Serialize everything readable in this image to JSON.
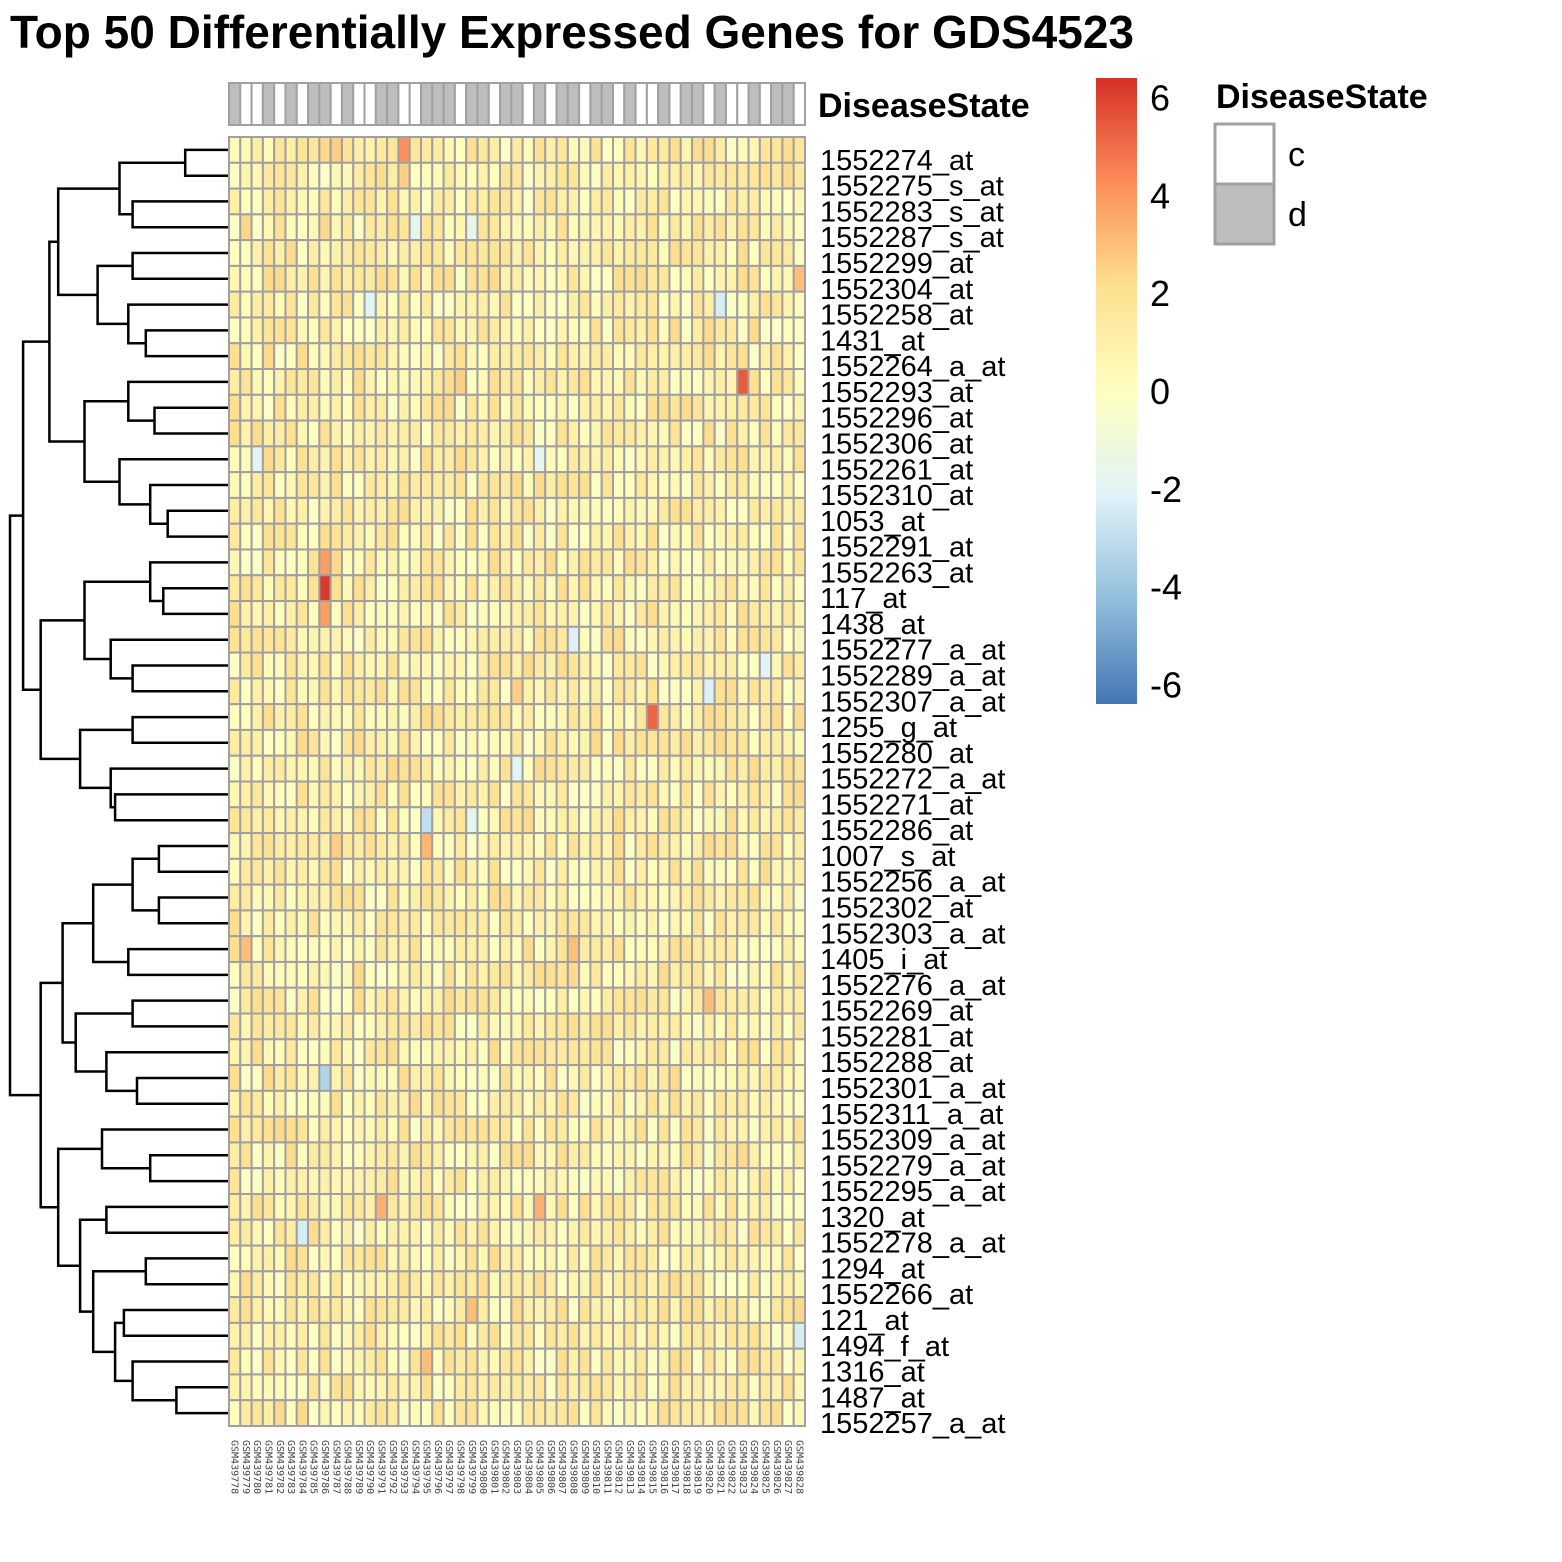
{
  "chart_data": {
    "type": "heatmap",
    "title": "Top 50 Differentially Expressed Genes for GDS4523",
    "annotation": {
      "name": "DiseaseState",
      "legend_title": "DiseaseState",
      "levels": [
        {
          "label": "c",
          "color": "#ffffff"
        },
        {
          "label": "d",
          "color": "#bebebe"
        }
      ],
      "sample_states": [
        "d",
        "c",
        "c",
        "d",
        "c",
        "d",
        "c",
        "d",
        "d",
        "c",
        "d",
        "c",
        "c",
        "d",
        "d",
        "c",
        "c",
        "d",
        "d",
        "d",
        "c",
        "d",
        "d",
        "c",
        "d",
        "d",
        "c",
        "d",
        "c",
        "d",
        "d",
        "c",
        "d",
        "d",
        "c",
        "d",
        "c",
        "c",
        "d",
        "c",
        "d",
        "d",
        "c",
        "d",
        "c",
        "c",
        "d",
        "c",
        "d",
        "d",
        "c"
      ]
    },
    "color_scale": {
      "ticks": [
        "6",
        "4",
        "2",
        "0",
        "-2",
        "-4",
        "-6"
      ],
      "min": -6.4,
      "max": 6.4,
      "colors": [
        "#4575b4",
        "#91bfdb",
        "#e0f3f8",
        "#ffffbf",
        "#fee090",
        "#fc8d59",
        "#d73027"
      ]
    },
    "samples": [
      "GSM439778",
      "GSM439779",
      "GSM439780",
      "GSM439781",
      "GSM439782",
      "GSM439783",
      "GSM439784",
      "GSM439785",
      "GSM439786",
      "GSM439787",
      "GSM439788",
      "GSM439789",
      "GSM439790",
      "GSM439791",
      "GSM439792",
      "GSM439793",
      "GSM439794",
      "GSM439795",
      "GSM439796",
      "GSM439797",
      "GSM439798",
      "GSM439799",
      "GSM439800",
      "GSM439801",
      "GSM439802",
      "GSM439803",
      "GSM439804",
      "GSM439805",
      "GSM439806",
      "GSM439807",
      "GSM439808",
      "GSM439809",
      "GSM439810",
      "GSM439811",
      "GSM439812",
      "GSM439813",
      "GSM439814",
      "GSM439815",
      "GSM439816",
      "GSM439817",
      "GSM439818",
      "GSM439819",
      "GSM439820",
      "GSM439821",
      "GSM439822",
      "GSM439823",
      "GSM439824",
      "GSM439825",
      "GSM439826",
      "GSM439827",
      "GSM439828"
    ],
    "genes": [
      "1552274_at",
      "1552275_s_at",
      "1552283_s_at",
      "1552287_s_at",
      "1552299_at",
      "1552304_at",
      "1552258_at",
      "1431_at",
      "1552264_a_at",
      "1552293_at",
      "1552296_at",
      "1552306_at",
      "1552261_at",
      "1552310_at",
      "1053_at",
      "1552291_at",
      "1552263_at",
      "117_at",
      "1438_at",
      "1552277_a_at",
      "1552289_a_at",
      "1552307_a_at",
      "1255_g_at",
      "1552280_at",
      "1552272_a_at",
      "1552271_at",
      "1552286_at",
      "1007_s_at",
      "1552256_a_at",
      "1552302_at",
      "1552303_a_at",
      "1405_i_at",
      "1552276_a_at",
      "1552269_at",
      "1552281_at",
      "1552288_at",
      "1552301_a_at",
      "1552311_a_at",
      "1552309_a_at",
      "1552279_a_at",
      "1552295_a_at",
      "1320_at",
      "1552278_a_at",
      "1294_at",
      "1552266_at",
      "121_at",
      "1494_f_at",
      "1316_at",
      "1487_at",
      "1552257_a_at"
    ],
    "base_level": 1.0,
    "highlights": [
      {
        "gene": "1552274_at",
        "sample": "GSM439793",
        "value": 4.2
      },
      {
        "gene": "1552274_at",
        "sample": "GSM439787",
        "value": 2.6
      },
      {
        "gene": "1552275_s_at",
        "sample": "GSM439793",
        "value": 2.6
      },
      {
        "gene": "1552287_s_at",
        "sample": "GSM439794",
        "value": -1.8
      },
      {
        "gene": "1552287_s_at",
        "sample": "GSM439799",
        "value": -1.6
      },
      {
        "gene": "1552287_s_at",
        "sample": "GSM439779",
        "value": 2.4
      },
      {
        "gene": "1552304_at",
        "sample": "GSM439828",
        "value": 3.0
      },
      {
        "gene": "1552258_at",
        "sample": "GSM439790",
        "value": -2.0
      },
      {
        "gene": "1552258_at",
        "sample": "GSM439821",
        "value": -2.4
      },
      {
        "gene": "1552293_at",
        "sample": "GSM439823",
        "value": 5.4
      },
      {
        "gene": "1552293_at",
        "sample": "GSM439798",
        "value": 2.6
      },
      {
        "gene": "1552261_at",
        "sample": "GSM439780",
        "value": -2.0
      },
      {
        "gene": "1552261_at",
        "sample": "GSM439805",
        "value": -1.8
      },
      {
        "gene": "1552263_at",
        "sample": "GSM439786",
        "value": 3.8
      },
      {
        "gene": "117_at",
        "sample": "GSM439786",
        "value": 6.2
      },
      {
        "gene": "1438_at",
        "sample": "GSM439786",
        "value": 3.8
      },
      {
        "gene": "1552277_a_at",
        "sample": "GSM439808",
        "value": -2.2
      },
      {
        "gene": "1552289_a_at",
        "sample": "GSM439825",
        "value": -2.0
      },
      {
        "gene": "1552307_a_at",
        "sample": "GSM439820",
        "value": -2.2
      },
      {
        "gene": "1552307_a_at",
        "sample": "GSM439803",
        "value": 2.6
      },
      {
        "gene": "1255_g_at",
        "sample": "GSM439815",
        "value": 5.2
      },
      {
        "gene": "1552272_a_at",
        "sample": "GSM439803",
        "value": -2.0
      },
      {
        "gene": "1552286_at",
        "sample": "GSM439795",
        "value": -3.0
      },
      {
        "gene": "1552286_at",
        "sample": "GSM439799",
        "value": -1.8
      },
      {
        "gene": "1007_s_at",
        "sample": "GSM439795",
        "value": 3.2
      },
      {
        "gene": "1007_s_at",
        "sample": "GSM439787",
        "value": 2.6
      },
      {
        "gene": "1405_i_at",
        "sample": "GSM439779",
        "value": 3.0
      },
      {
        "gene": "1405_i_at",
        "sample": "GSM439808",
        "value": 3.0
      },
      {
        "gene": "1552269_at",
        "sample": "GSM439820",
        "value": 3.0
      },
      {
        "gene": "1552301_a_at",
        "sample": "GSM439786",
        "value": -3.4
      },
      {
        "gene": "1320_at",
        "sample": "GSM439791",
        "value": 3.4
      },
      {
        "gene": "1320_at",
        "sample": "GSM439805",
        "value": 3.4
      },
      {
        "gene": "1552278_a_at",
        "sample": "GSM439784",
        "value": -2.4
      },
      {
        "gene": "121_at",
        "sample": "GSM439799",
        "value": 3.0
      },
      {
        "gene": "1494_f_at",
        "sample": "GSM439828",
        "value": -2.4
      },
      {
        "gene": "1316_at",
        "sample": "GSM439795",
        "value": 3.0
      }
    ],
    "row_dendrogram": "hierarchical clustering of genes",
    "legend_position": "right"
  }
}
